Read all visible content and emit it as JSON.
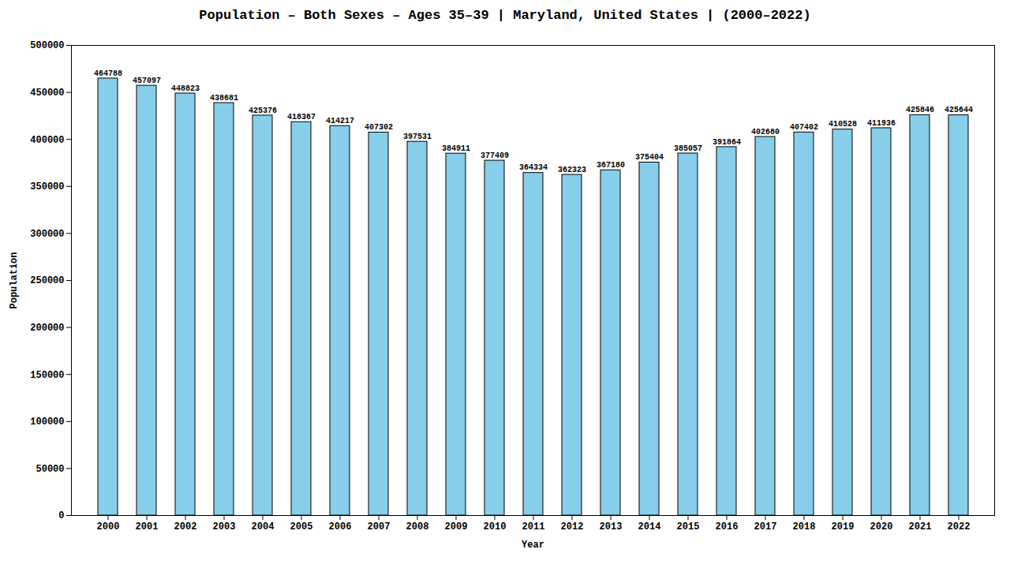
{
  "chart_data": {
    "type": "bar",
    "title": "Population – Both Sexes – Ages 35–39 | Maryland, United States |   (2000–2022)",
    "xlabel": "Year",
    "ylabel": "Population",
    "categories": [
      "2000",
      "2001",
      "2002",
      "2003",
      "2004",
      "2005",
      "2006",
      "2007",
      "2008",
      "2009",
      "2010",
      "2011",
      "2012",
      "2013",
      "2014",
      "2015",
      "2016",
      "2017",
      "2018",
      "2019",
      "2020",
      "2021",
      "2022"
    ],
    "values": [
      464788,
      457097,
      448823,
      438681,
      425376,
      418367,
      414217,
      407302,
      397531,
      384911,
      377409,
      364334,
      362323,
      367180,
      375404,
      385057,
      391864,
      402680,
      407402,
      410528,
      411936,
      425846,
      425644
    ],
    "color": "#87CEEB",
    "ylim": [
      0,
      500000
    ],
    "yticks": [
      0,
      50000,
      100000,
      150000,
      200000,
      250000,
      300000,
      350000,
      400000,
      450000,
      500000
    ],
    "grid": false,
    "data_labels": true
  }
}
